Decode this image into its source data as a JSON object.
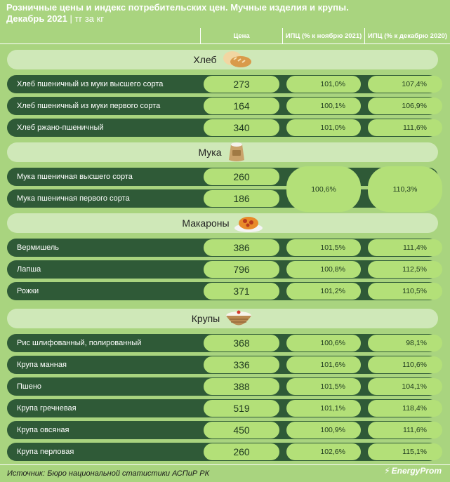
{
  "title": "Розничные цены и индекс потребительских цен. Мучные изделия и крупы.",
  "subtitle_date": "Декабрь 2021",
  "subtitle_sep": "|",
  "subtitle_unit": "тг за кг",
  "columns": {
    "price": "Цена",
    "ipc_month": "ИПЦ (% к ноябрю 2021)",
    "ipc_year": "ИПЦ (% к декабрю 2020)"
  },
  "footer": {
    "source": "Источник: Бюро национальной статистики АСПиР РК",
    "logo": "EnergyProm"
  },
  "colors": {
    "background": "#a9d47f",
    "row_band": "#2f5a37",
    "pill": "#b3e078",
    "group_band": "#cfe8b8"
  },
  "chart_data": {
    "type": "table",
    "groups": [
      {
        "name": "Хлеб",
        "icon": "bread-icon",
        "rows": [
          {
            "label": "Хлеб пшеничный из муки высшего сорта",
            "price": "273",
            "ipc_month": "101,0%",
            "ipc_year": "107,4%"
          },
          {
            "label": "Хлеб пшеничный из муки первого сорта",
            "price": "164",
            "ipc_month": "100,1%",
            "ipc_year": "106,9%"
          },
          {
            "label": "Хлеб ржано-пшеничный",
            "price": "340",
            "ipc_month": "101,0%",
            "ipc_year": "111,6%"
          }
        ]
      },
      {
        "name": "Мука",
        "icon": "flour-sack-icon",
        "rows": [
          {
            "label": "Мука пшеничная высшего сорта",
            "price": "260"
          },
          {
            "label": "Мука пшеничная первого сорта",
            "price": "186"
          }
        ],
        "merged_ipc_month": "100,6%",
        "merged_ipc_year": "110,3%"
      },
      {
        "name": "Макароны",
        "icon": "pasta-plate-icon",
        "rows": [
          {
            "label": "Вермишель",
            "price": "386",
            "ipc_month": "101,5%",
            "ipc_year": "111,4%"
          },
          {
            "label": "Лапша",
            "price": "796",
            "ipc_month": "100,8%",
            "ipc_year": "112,5%"
          },
          {
            "label": "Рожки",
            "price": "371",
            "ipc_month": "101,2%",
            "ipc_year": "110,5%"
          }
        ]
      },
      {
        "name": "Крупы",
        "icon": "grain-bowl-icon",
        "rows": [
          {
            "label": "Рис шлифованный, полированный",
            "price": "368",
            "ipc_month": "100,6%",
            "ipc_year": "98,1%"
          },
          {
            "label": "Крупа манная",
            "price": "336",
            "ipc_month": "101,6%",
            "ipc_year": "110,6%"
          },
          {
            "label": "Пшено",
            "price": "388",
            "ipc_month": "101,5%",
            "ipc_year": "104,1%"
          },
          {
            "label": "Крупа гречневая",
            "price": "519",
            "ipc_month": "101,1%",
            "ipc_year": "118,4%"
          },
          {
            "label": "Крупа овсяная",
            "price": "450",
            "ipc_month": "100,9%",
            "ipc_year": "111,6%"
          },
          {
            "label": "Крупа перловая",
            "price": "260",
            "ipc_month": "102,6%",
            "ipc_year": "115,1%"
          }
        ]
      }
    ]
  }
}
